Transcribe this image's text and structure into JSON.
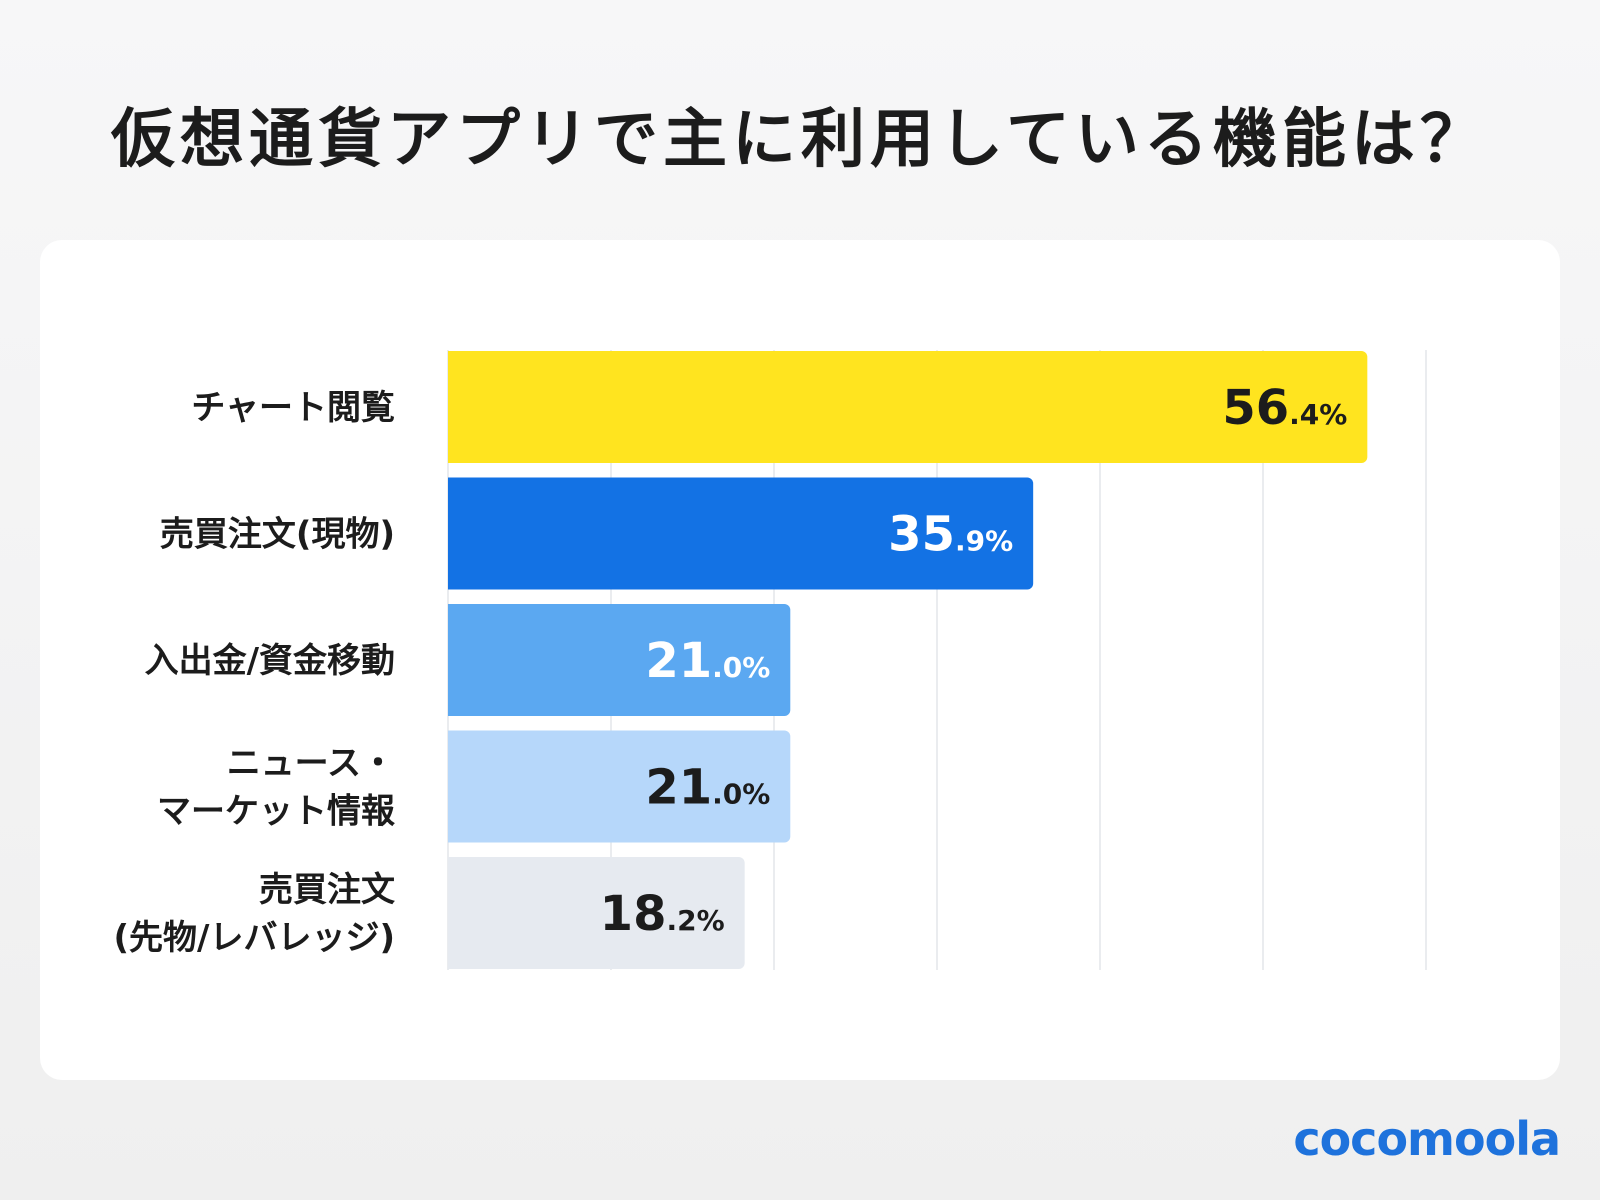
{
  "chart_data": {
    "type": "bar",
    "orientation": "horizontal",
    "title": "仮想通貨アプリで主に利用している機能は？",
    "categories": [
      [
        "チャート閲覧"
      ],
      [
        "売買注文(現物)"
      ],
      [
        "入出金/資金移動"
      ],
      [
        "ニュース・",
        "マーケット情報"
      ],
      [
        "売買注文",
        "(先物/レバレッジ)"
      ]
    ],
    "values": [
      56.4,
      35.9,
      21.0,
      21.0,
      18.2
    ],
    "value_labels": [
      {
        "int": "56",
        "dec": ".4%"
      },
      {
        "int": "35",
        "dec": ".9%"
      },
      {
        "int": "21",
        "dec": ".0%"
      },
      {
        "int": "21",
        "dec": ".0%"
      },
      {
        "int": "18",
        "dec": ".2%"
      }
    ],
    "bar_colors": [
      "#ffe41f",
      "#1372e4",
      "#5ba8f1",
      "#b6d7fa",
      "#e6eaf0"
    ],
    "label_colors": [
      "#1c1c1c",
      "#ffffff",
      "#ffffff",
      "#1c1c1c",
      "#1c1c1c"
    ],
    "xlim": [
      0,
      60
    ],
    "grid": true,
    "legend": "none"
  },
  "brand": {
    "logo_text": "cocomoola",
    "logo_color": "#1e72dc"
  }
}
